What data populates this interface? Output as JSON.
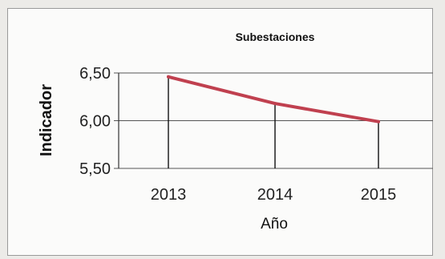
{
  "chart_data": {
    "type": "line",
    "title": "Subestaciones",
    "xlabel": "Año",
    "ylabel": "Indicador",
    "categories": [
      "2013",
      "2014",
      "2015"
    ],
    "values": [
      6.46,
      6.18,
      5.99
    ],
    "ylim": [
      5.5,
      6.5
    ],
    "yticks": [
      "5,50",
      "6,00",
      "6,50"
    ],
    "grid": true,
    "drop_lines": true,
    "line_color": "#c0404f"
  }
}
